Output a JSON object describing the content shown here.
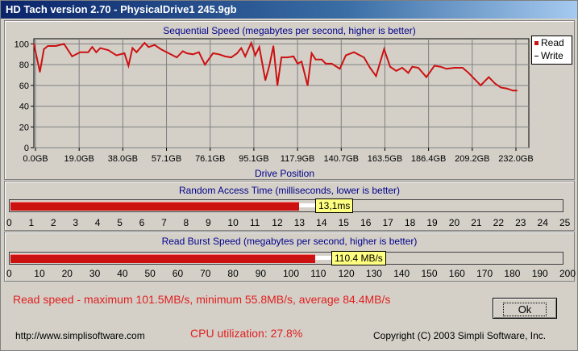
{
  "window": {
    "title": "HD Tach version 2.70 - PhysicalDrive1 245.9gb"
  },
  "colors": {
    "read": "#cc1111",
    "write": "#ffffff",
    "title_text": "#00008b",
    "status_text": "#e02020",
    "badge": "#ffff80"
  },
  "sequential": {
    "title": "Sequential Speed (megabytes per second, higher is better)",
    "xlabel": "Drive Position",
    "legend": {
      "read": "Read",
      "write": "Write"
    }
  },
  "chart_data": {
    "type": "line",
    "title": "Sequential Speed (megabytes per second, higher is better)",
    "xlabel": "Drive Position",
    "ylabel": "",
    "ylim": [
      0,
      105
    ],
    "y_ticks": [
      0,
      20,
      40,
      60,
      80,
      100
    ],
    "x_tick_labels": [
      "0.0GB",
      "19.0GB",
      "38.0GB",
      "57.1GB",
      "76.1GB",
      "95.1GB",
      "117.9GB",
      "140.7GB",
      "163.5GB",
      "186.4GB",
      "209.2GB",
      "232.0GB"
    ],
    "xlim": [
      0,
      245.9
    ],
    "grid": true,
    "legend": "top-right",
    "series": [
      {
        "name": "Read",
        "color": "#cc1111",
        "x": [
          0,
          3,
          5,
          7,
          11,
          15,
          19,
          23,
          27,
          29,
          31,
          33,
          37,
          41,
          45,
          47,
          49,
          51,
          55,
          57,
          60,
          63,
          67,
          71,
          74,
          76,
          79,
          82,
          85,
          89,
          92,
          95,
          98,
          101,
          103,
          105,
          108,
          110,
          112,
          115,
          117,
          119,
          121,
          123,
          126,
          129,
          131,
          133,
          136,
          138,
          140,
          143,
          145,
          148,
          152,
          155,
          159,
          164,
          167,
          170,
          174,
          177,
          180,
          183,
          186,
          188,
          191,
          195,
          199,
          202,
          205,
          209,
          213,
          216,
          219,
          222,
          226,
          229,
          232,
          235,
          238,
          240
        ],
        "y": [
          100,
          73,
          95,
          98,
          98,
          100,
          88,
          92,
          92,
          97,
          92,
          96,
          94,
          89,
          91,
          79,
          96,
          92,
          101,
          97,
          99,
          95,
          91,
          87,
          93,
          91,
          90,
          92,
          80,
          91,
          90,
          88,
          87,
          91,
          96,
          88,
          101,
          89,
          97,
          65,
          79,
          98,
          60,
          87,
          87,
          88,
          81,
          83,
          60,
          91,
          85,
          85,
          81,
          81,
          76,
          89,
          92,
          87,
          77,
          69,
          95,
          78,
          74,
          77,
          72,
          78,
          77,
          68,
          79,
          78,
          76,
          77,
          77,
          72,
          66,
          60,
          68,
          62,
          58,
          57,
          55,
          55
        ]
      }
    ]
  },
  "random_access": {
    "title": "Random Access Time (milliseconds, lower is better)",
    "value": 13.1,
    "value_label": "13,1ms",
    "max": 25,
    "scale": [
      "0",
      "1",
      "2",
      "3",
      "4",
      "5",
      "6",
      "7",
      "8",
      "9",
      "10",
      "11",
      "12",
      "13",
      "14",
      "15",
      "16",
      "17",
      "18",
      "19",
      "20",
      "21",
      "22",
      "23",
      "24",
      "25"
    ]
  },
  "burst": {
    "title": "Read Burst Speed (megabytes per second, higher is better)",
    "value": 110.4,
    "value_label": "110.4 MB/s",
    "max": 200,
    "scale": [
      "0",
      "10",
      "20",
      "30",
      "40",
      "50",
      "60",
      "70",
      "80",
      "90",
      "100",
      "110",
      "120",
      "130",
      "140",
      "150",
      "160",
      "170",
      "180",
      "190",
      "200"
    ]
  },
  "status": {
    "read_summary": "Read speed - maximum 101.5MB/s, minimum 55.8MB/s, average 84.4MB/s",
    "cpu": "CPU utilization: 27.8%"
  },
  "footer": {
    "url": "http://www.simplisoftware.com",
    "copyright": "Copyright (C) 2003 Simpli Software, Inc."
  },
  "buttons": {
    "ok": "Ok"
  }
}
